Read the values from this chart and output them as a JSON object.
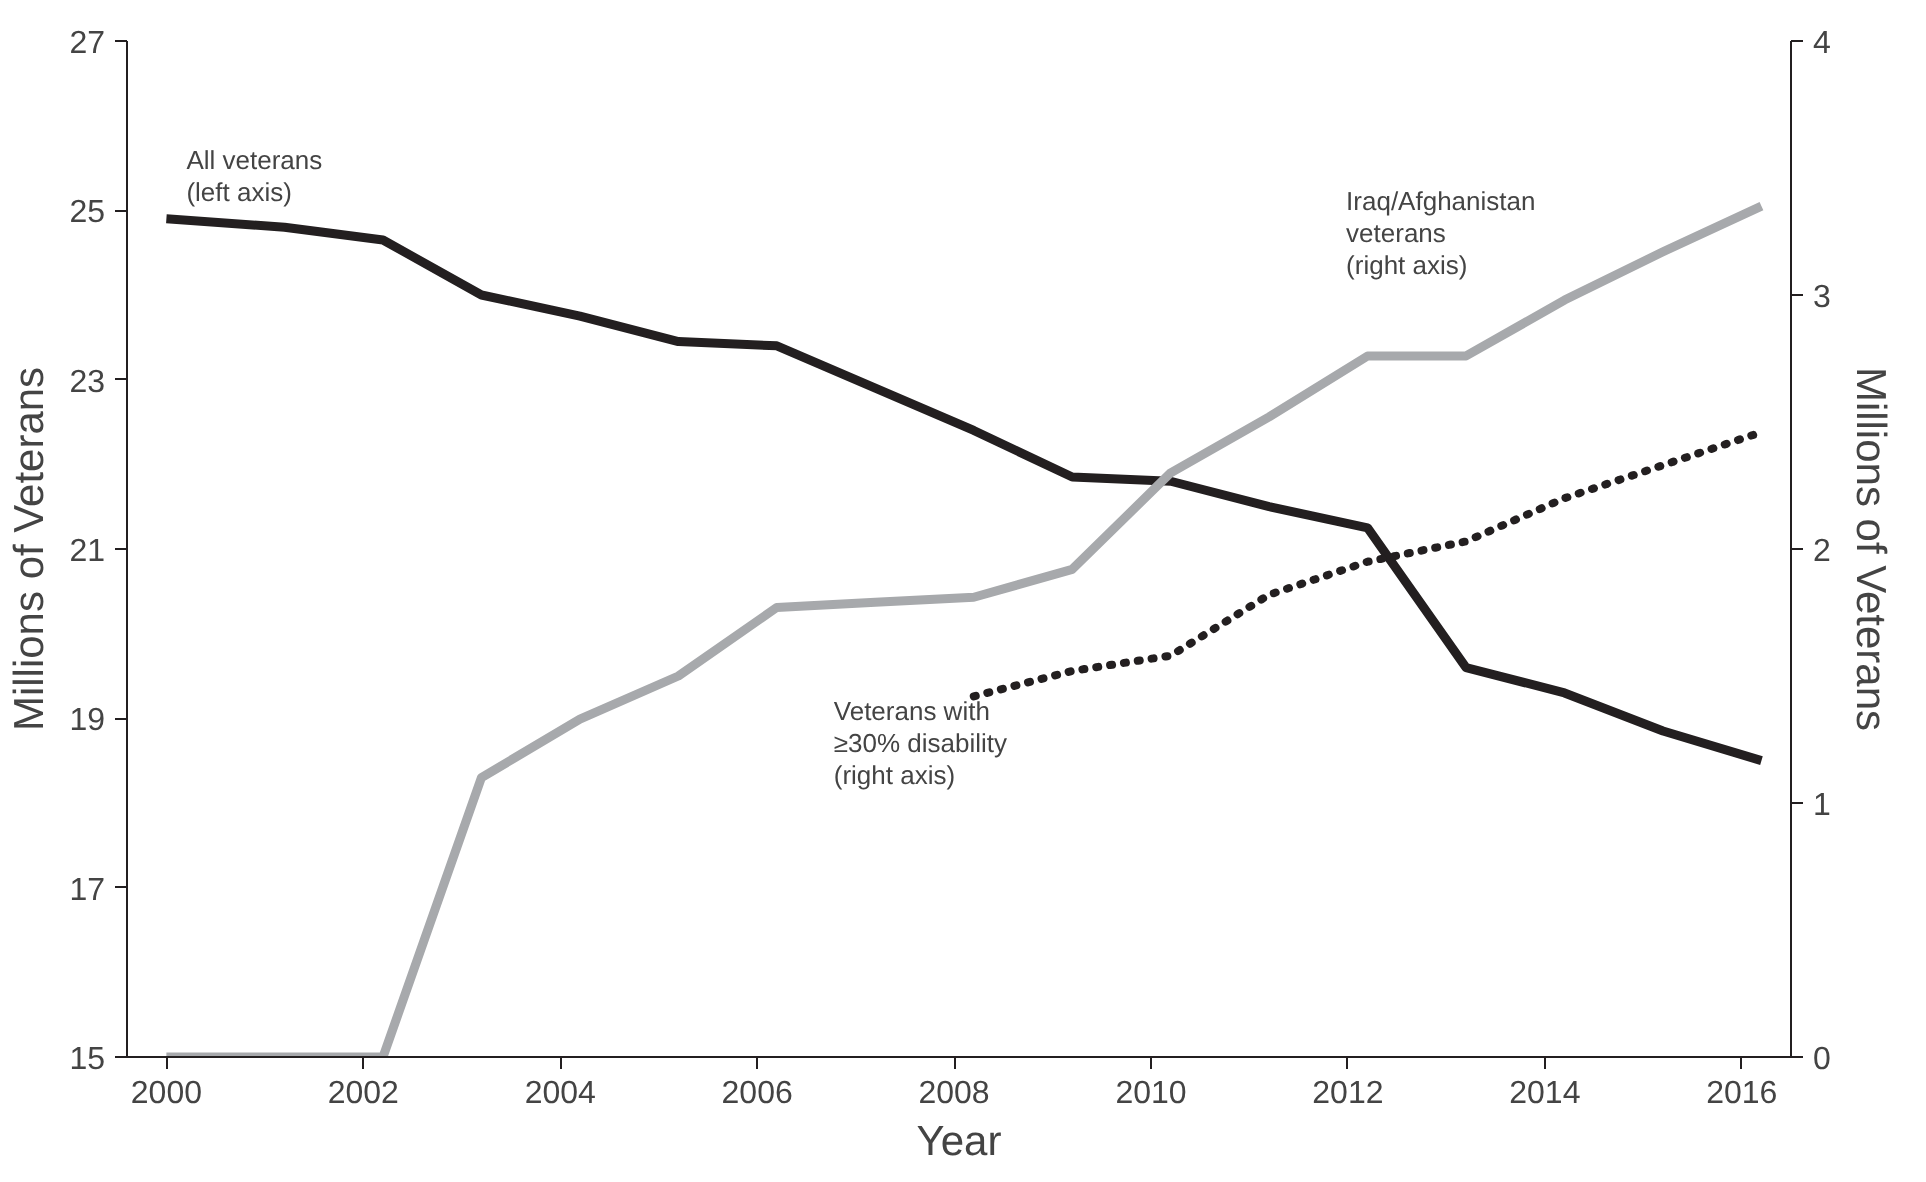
{
  "chart_data": {
    "type": "line",
    "xlabel": "Year",
    "ylabel": "Millions of Veterans",
    "y2label": "Millions of Veterans",
    "xlim": [
      1999.6,
      2016.5
    ],
    "xticks": [
      2000,
      2002,
      2004,
      2006,
      2008,
      2010,
      2012,
      2014,
      2016
    ],
    "ylim": [
      15,
      27
    ],
    "yticks": [
      15,
      17,
      19,
      21,
      23,
      25,
      27
    ],
    "y2lim": [
      0,
      4
    ],
    "y2ticks": [
      0,
      1,
      2,
      3,
      4
    ],
    "grid": false,
    "series": [
      {
        "name": "All veterans\n(left axis)",
        "color": "#231f20",
        "line_style": "solid",
        "x": [
          2000,
          2001.2,
          2002.2,
          2003.2,
          2004.2,
          2005.2,
          2006.2,
          2007.2,
          2008.2,
          2009.2,
          2010.2,
          2011.2,
          2012.2,
          2013.2,
          2014.2,
          2015.2,
          2016.2
        ],
        "values": [
          24.9,
          24.8,
          24.65,
          24.0,
          23.75,
          23.45,
          23.4,
          22.9,
          22.4,
          21.85,
          21.8,
          21.5,
          21.25,
          19.6,
          19.3,
          18.85,
          18.5
        ]
      },
      {
        "name": "Iraq/Afghanistan\nveterans\n(right axis)",
        "color": "#a7a9ac",
        "line_style": "solid",
        "axis": "y2",
        "x": [
          2000,
          2001.2,
          2002.2,
          2003.2,
          2004.2,
          2005.2,
          2006.2,
          2007.2,
          2008.2,
          2009.2,
          2010.2,
          2011.2,
          2012.2,
          2013.2,
          2014.2,
          2015.2,
          2016.2
        ],
        "values": [
          0,
          0,
          0,
          1.1,
          1.33,
          1.5,
          1.77,
          1.79,
          1.81,
          1.92,
          2.3,
          2.52,
          2.76,
          2.76,
          2.98,
          3.17,
          3.35
        ]
      },
      {
        "name": "Veterans with\n≥30% disability\n(right axis)",
        "color": "#231f20",
        "line_style": "dotted",
        "axis": "y2",
        "x": [
          2008.2,
          2009.2,
          2010.2,
          2011.2,
          2012.2,
          2013.2,
          2014.2,
          2015.2,
          2016.2
        ],
        "values": [
          1.42,
          1.52,
          1.58,
          1.82,
          1.95,
          2.03,
          2.2,
          2.33,
          2.46
        ]
      }
    ]
  }
}
